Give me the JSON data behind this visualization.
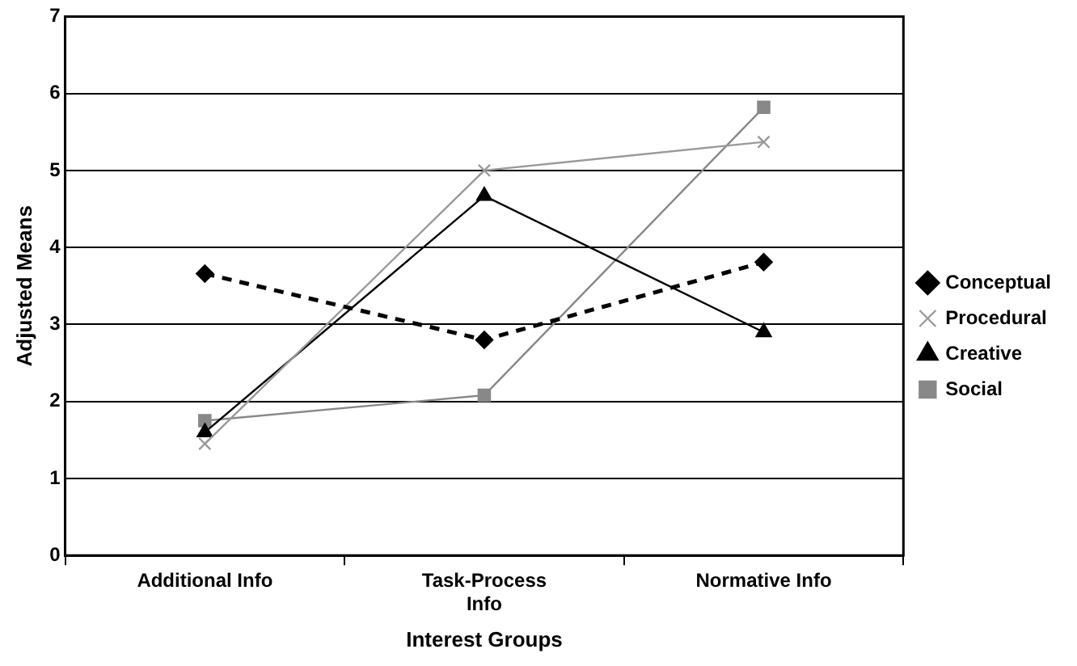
{
  "chart_data": {
    "type": "line",
    "xlabel": "Interest Groups",
    "ylabel": "Adjusted Means",
    "categories": [
      "Additional Info",
      "Task-Process Info",
      "Normative Info"
    ],
    "series": [
      {
        "name": "Conceptual",
        "color": "#000000",
        "values": [
          3.66,
          2.8,
          3.81
        ],
        "marker": "diamond",
        "line_style": "dashed"
      },
      {
        "name": "Procedural",
        "color": "#999999",
        "values": [
          1.45,
          5.0,
          5.37
        ],
        "marker": "cross",
        "line_style": "solid"
      },
      {
        "name": "Creative",
        "color": "#000000",
        "values": [
          1.6,
          4.67,
          2.9
        ],
        "marker": "triangle",
        "line_style": "solid"
      },
      {
        "name": "Social",
        "color": "#888888",
        "values": [
          1.75,
          2.08,
          5.82
        ],
        "marker": "square",
        "line_style": "solid"
      }
    ],
    "ylim": [
      0,
      7
    ],
    "yticks": [
      0,
      1,
      2,
      3,
      4,
      5,
      6,
      7
    ],
    "grid": "y",
    "legend": "right"
  }
}
